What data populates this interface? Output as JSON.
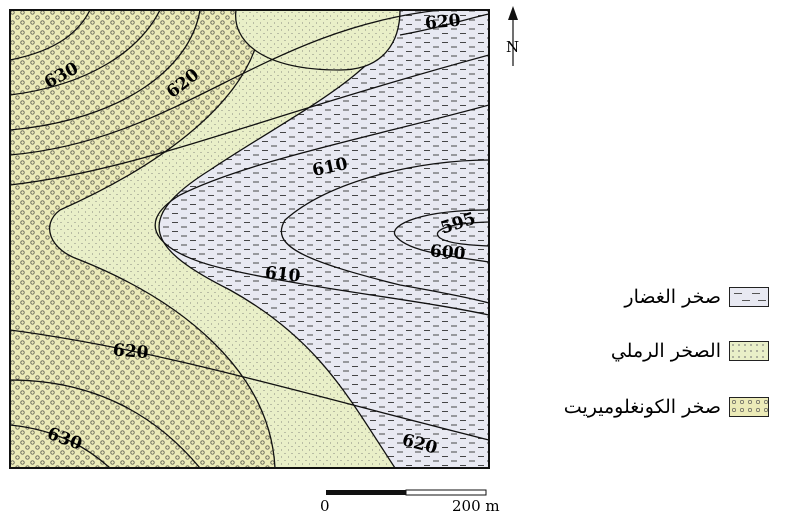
{
  "map": {
    "north_label": "N",
    "contours": [
      {
        "label": "620"
      },
      {
        "label": "630"
      },
      {
        "label": "620"
      },
      {
        "label": "610"
      },
      {
        "label": "595"
      },
      {
        "label": "600"
      },
      {
        "label": "610"
      },
      {
        "label": "620"
      },
      {
        "label": "630"
      },
      {
        "label": "620"
      }
    ],
    "legend": [
      {
        "label": "صخر الغضار",
        "pattern": "shale"
      },
      {
        "label": "الصخر الرملي",
        "pattern": "sandstone"
      },
      {
        "label": "صخر الكونغلوميريت",
        "pattern": "conglomerate"
      }
    ],
    "scale": {
      "start_label": "0",
      "end_label": "200 m"
    },
    "colors": {
      "shale": "#e8e9f2",
      "sandstone": "#e9efc8",
      "conglomerate": "#ecebb8",
      "line": "#111111"
    }
  }
}
